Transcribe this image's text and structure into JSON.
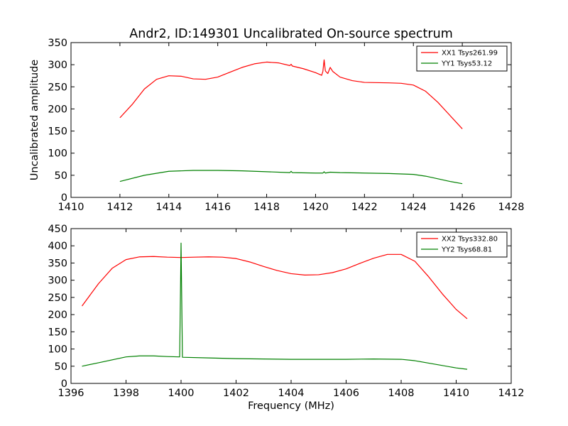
{
  "chart_data": [
    {
      "type": "line",
      "title": "Andr2, ID:149301 Uncalibrated On-source spectrum",
      "xlabel": "",
      "ylabel": "Uncalibrated amplitude",
      "xlim": [
        1410,
        1428
      ],
      "ylim": [
        0,
        350
      ],
      "xticks": [
        1410,
        1412,
        1414,
        1416,
        1418,
        1420,
        1422,
        1424,
        1426,
        1428
      ],
      "yticks": [
        0,
        50,
        100,
        150,
        200,
        250,
        300,
        350
      ],
      "grid": false,
      "legend_position": "top-right",
      "series": [
        {
          "name": "XX1 Tsys261.99",
          "color": "#ff0000",
          "points": [
            [
              1412,
              180
            ],
            [
              1412.5,
              210
            ],
            [
              1413,
              245
            ],
            [
              1413.5,
              267
            ],
            [
              1414,
              275
            ],
            [
              1414.5,
              274
            ],
            [
              1415,
              268
            ],
            [
              1415.5,
              267
            ],
            [
              1416,
              272
            ],
            [
              1416.5,
              283
            ],
            [
              1417,
              294
            ],
            [
              1417.5,
              302
            ],
            [
              1418,
              306
            ],
            [
              1418.5,
              304
            ],
            [
              1418.95,
              298
            ],
            [
              1419.0,
              301
            ],
            [
              1419.05,
              297
            ],
            [
              1419.5,
              291
            ],
            [
              1420,
              282
            ],
            [
              1420.25,
              276
            ],
            [
              1420.3,
              285
            ],
            [
              1420.35,
              311
            ],
            [
              1420.4,
              286
            ],
            [
              1420.5,
              280
            ],
            [
              1420.6,
              294
            ],
            [
              1420.7,
              285
            ],
            [
              1421,
              272
            ],
            [
              1421.5,
              264
            ],
            [
              1422,
              260
            ],
            [
              1423,
              259
            ],
            [
              1423.5,
              258
            ],
            [
              1424,
              254
            ],
            [
              1424.5,
              240
            ],
            [
              1425,
              215
            ],
            [
              1425.5,
              185
            ],
            [
              1426,
              155
            ]
          ]
        },
        {
          "name": "YY1 Tsys53.12",
          "color": "#008000",
          "points": [
            [
              1412,
              36
            ],
            [
              1413,
              50
            ],
            [
              1414,
              59
            ],
            [
              1415,
              61
            ],
            [
              1416,
              61
            ],
            [
              1417,
              60
            ],
            [
              1418,
              58
            ],
            [
              1418.95,
              56
            ],
            [
              1419.0,
              59
            ],
            [
              1419.05,
              56
            ],
            [
              1420,
              55
            ],
            [
              1420.3,
              55
            ],
            [
              1420.35,
              58
            ],
            [
              1420.4,
              55
            ],
            [
              1420.6,
              57
            ],
            [
              1421,
              56
            ],
            [
              1422,
              55
            ],
            [
              1423,
              54
            ],
            [
              1424,
              52
            ],
            [
              1424.5,
              48
            ],
            [
              1425,
              42
            ],
            [
              1425.5,
              36
            ],
            [
              1426,
              31
            ]
          ]
        }
      ]
    },
    {
      "type": "line",
      "title": "",
      "xlabel": "Frequency (MHz)",
      "ylabel": "",
      "xlim": [
        1396,
        1412
      ],
      "ylim": [
        0,
        450
      ],
      "xticks": [
        1396,
        1398,
        1400,
        1402,
        1404,
        1406,
        1408,
        1410,
        1412
      ],
      "yticks": [
        0,
        50,
        100,
        150,
        200,
        250,
        300,
        350,
        400,
        450
      ],
      "grid": false,
      "legend_position": "top-right",
      "series": [
        {
          "name": "XX2 Tsys332.80",
          "color": "#ff0000",
          "points": [
            [
              1396.4,
              225
            ],
            [
              1397,
              290
            ],
            [
              1397.5,
              335
            ],
            [
              1398,
              360
            ],
            [
              1398.5,
              368
            ],
            [
              1399,
              369
            ],
            [
              1399.5,
              367
            ],
            [
              1400,
              366
            ],
            [
              1400.5,
              367
            ],
            [
              1401,
              368
            ],
            [
              1401.5,
              367
            ],
            [
              1402,
              363
            ],
            [
              1402.5,
              353
            ],
            [
              1403,
              340
            ],
            [
              1403.5,
              328
            ],
            [
              1404,
              319
            ],
            [
              1404.5,
              315
            ],
            [
              1405,
              316
            ],
            [
              1405.5,
              322
            ],
            [
              1406,
              333
            ],
            [
              1406.5,
              349
            ],
            [
              1407,
              364
            ],
            [
              1407.5,
              375
            ],
            [
              1408,
              375
            ],
            [
              1408.5,
              355
            ],
            [
              1409,
              310
            ],
            [
              1409.5,
              260
            ],
            [
              1410,
              215
            ],
            [
              1410.4,
              188
            ]
          ]
        },
        {
          "name": "YY2 Tsys68.81",
          "color": "#008000",
          "points": [
            [
              1396.4,
              50
            ],
            [
              1397,
              60
            ],
            [
              1398,
              77
            ],
            [
              1398.5,
              80
            ],
            [
              1399,
              80
            ],
            [
              1399.5,
              78
            ],
            [
              1399.95,
              77
            ],
            [
              1400.0,
              408
            ],
            [
              1400.05,
              76
            ],
            [
              1401,
              74
            ],
            [
              1402,
              72
            ],
            [
              1403,
              71
            ],
            [
              1404,
              70
            ],
            [
              1405,
              70
            ],
            [
              1406,
              70
            ],
            [
              1407,
              71
            ],
            [
              1408,
              70
            ],
            [
              1408.5,
              66
            ],
            [
              1409,
              59
            ],
            [
              1409.5,
              52
            ],
            [
              1410,
              45
            ],
            [
              1410.4,
              41
            ]
          ]
        }
      ]
    }
  ]
}
